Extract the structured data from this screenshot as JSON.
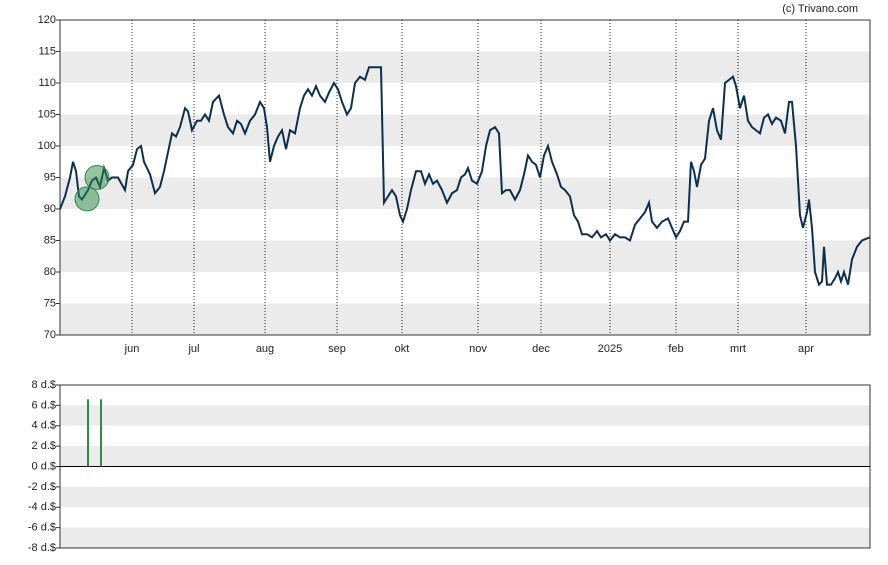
{
  "copyright": "(c) Trivano.com",
  "chart_data": [
    {
      "type": "line",
      "xlim": [
        0,
        405
      ],
      "ylim": [
        70,
        120
      ],
      "yticks": [
        70,
        75,
        80,
        85,
        90,
        95,
        100,
        105,
        110,
        115,
        120
      ],
      "bands": true,
      "grid": true,
      "xticks": [
        {
          "value": 36,
          "label": "jun"
        },
        {
          "value": 67,
          "label": "jul"
        },
        {
          "value": 102.5,
          "label": "aug"
        },
        {
          "value": 138.5,
          "label": "sep"
        },
        {
          "value": 171,
          "label": "okt"
        },
        {
          "value": 209,
          "label": "nov"
        },
        {
          "value": 240.5,
          "label": "dec"
        },
        {
          "value": 275,
          "label": "2025"
        },
        {
          "value": 308,
          "label": "feb"
        },
        {
          "value": 339,
          "label": "mrt"
        },
        {
          "value": 373,
          "label": "apr"
        }
      ],
      "series": [
        {
          "color": "#0d2f4f",
          "x": [
            0,
            2.5,
            5,
            6.5,
            8,
            9.5,
            11,
            14,
            16,
            18,
            20,
            22,
            24,
            26,
            29,
            32.5,
            34,
            36.5,
            38.5,
            40.5,
            42,
            45,
            47.5,
            50,
            52,
            54,
            56,
            58,
            60,
            62.5,
            64,
            66,
            68.5,
            70.5,
            72.5,
            74.5,
            76.5,
            79.5,
            82,
            84,
            86.5,
            88.5,
            90.5,
            92.5,
            95,
            97.5,
            100,
            102,
            103.5,
            105,
            107,
            109,
            111,
            113,
            115,
            117.5,
            120,
            122,
            124,
            126,
            128,
            130,
            132.5,
            134.5,
            137,
            139,
            141,
            143.5,
            145.5,
            147.5,
            150,
            152.5,
            154.5,
            156.5,
            158.5,
            160.5,
            162,
            164,
            166,
            168,
            170,
            171.5,
            173.5,
            175.5,
            178,
            180.5,
            182.5,
            184.5,
            186.5,
            188.5,
            191,
            193.5,
            196,
            198.5,
            200.5,
            202.5,
            204,
            206,
            208.5,
            211,
            213,
            215,
            217.5,
            219.5,
            221,
            223,
            225,
            227.5,
            230,
            232,
            234,
            236,
            238,
            240,
            242,
            244,
            246,
            248.5,
            250.5,
            252.5,
            255,
            257,
            259,
            261,
            263.5,
            266,
            268.5,
            270.5,
            273,
            275,
            277.5,
            280,
            282.5,
            285,
            287.5,
            290,
            292.5,
            294.5,
            296,
            298.5,
            301,
            304,
            306,
            308,
            310,
            312,
            314,
            315.5,
            317,
            318.5,
            320.5,
            322.5,
            324.5,
            326.5,
            328.5,
            330.5,
            332.5,
            334.5,
            336.5,
            338,
            340,
            342,
            344,
            346,
            348,
            350,
            352,
            354,
            356,
            358,
            360.5,
            362.5,
            364.5,
            366,
            368,
            370,
            371.5,
            373.5,
            374.5,
            376,
            377.5,
            379.5,
            381,
            382,
            383.5,
            385.5,
            387.5,
            389,
            390.5,
            392,
            394,
            396,
            398.5,
            401,
            405
          ],
          "values": [
            90,
            92,
            95,
            97.5,
            96,
            92,
            91.5,
            93,
            94.5,
            95,
            93.5,
            96.5,
            94.5,
            95,
            95,
            93,
            96,
            97,
            99.5,
            100,
            97.5,
            95.5,
            92.5,
            93.5,
            96,
            99,
            102,
            101.5,
            103,
            106,
            105.5,
            102.5,
            104,
            104,
            105,
            104,
            107,
            108,
            105,
            103,
            102,
            104,
            103.5,
            102,
            104,
            105,
            107,
            106,
            103,
            97.5,
            100,
            101.5,
            102.5,
            99.5,
            102.5,
            102,
            106,
            108,
            109,
            108,
            109.5,
            108,
            107,
            108.5,
            110,
            109,
            107,
            105,
            106,
            110,
            111,
            110.5,
            112.5,
            112.5,
            112.5,
            112.5,
            91,
            92,
            93,
            92,
            89,
            88,
            90,
            93,
            96,
            96,
            94,
            95.5,
            94,
            94.5,
            93,
            91,
            92.5,
            93,
            95,
            95.5,
            96.5,
            94.5,
            94,
            96,
            100,
            102.5,
            103,
            102,
            92.5,
            93,
            93,
            91.5,
            93,
            95.5,
            98.5,
            97.5,
            97,
            95,
            98.5,
            100,
            97.5,
            95.5,
            93.5,
            93,
            92,
            89,
            88,
            86,
            86,
            85.5,
            86.5,
            85.5,
            86,
            85,
            86,
            85.5,
            85.5,
            85,
            87.5,
            88.5,
            89.5,
            91,
            88,
            87,
            88,
            88.5,
            87,
            85.5,
            86.5,
            88,
            88,
            97.5,
            96,
            93.5,
            97,
            98,
            104,
            106,
            102.5,
            101,
            110,
            110.5,
            111,
            109.5,
            106,
            108,
            104,
            103,
            102.5,
            102,
            104.5,
            105,
            103.5,
            104.5,
            104,
            102,
            107,
            107,
            100,
            89,
            87,
            89.5,
            91.5,
            87,
            80,
            78,
            78.5,
            84,
            78,
            78,
            79,
            80,
            78.5,
            80,
            78,
            82,
            84,
            85,
            85.5
          ]
        }
      ],
      "dividend_markers": {
        "color": "#2e8b47",
        "x": [
          13.5,
          18.5
        ],
        "values": [
          91.6,
          95
        ]
      }
    },
    {
      "type": "bar",
      "xlim": [
        0,
        405
      ],
      "ylim": [
        -8,
        8
      ],
      "bands": true,
      "color": "#2e8b47",
      "yticks": [
        {
          "value": -8,
          "label": "-8 d.$"
        },
        {
          "value": -6,
          "label": "-6 d.$"
        },
        {
          "value": -4,
          "label": "-4 d.$"
        },
        {
          "value": -2,
          "label": "-2 d.$"
        },
        {
          "value": 0,
          "label": "0 d.$"
        },
        {
          "value": 2,
          "label": "2 d.$"
        },
        {
          "value": 4,
          "label": "4 d.$"
        },
        {
          "value": 6,
          "label": "6 d.$"
        },
        {
          "value": 8,
          "label": "8 d.$"
        }
      ],
      "x": [
        14,
        20.5
      ],
      "values": [
        6.6,
        6.6
      ]
    }
  ]
}
